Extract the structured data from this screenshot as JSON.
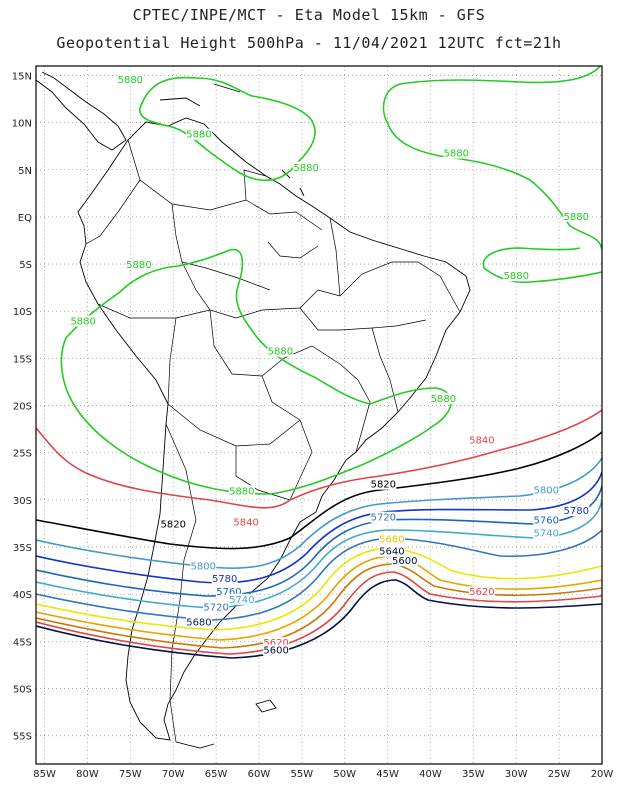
{
  "title": {
    "line1": "CPTEC/INPE/MCT  -   Eta Model 15km  -  GFS",
    "line2": "Geopotential Height 500hPa  -  11/04/2021 12UTC fct=21h"
  },
  "map": {
    "lon_range": [
      -86,
      -20
    ],
    "lat_range": [
      -58,
      16
    ],
    "lat_ticks": [
      {
        "v": 15,
        "label": "15N"
      },
      {
        "v": 10,
        "label": "10N"
      },
      {
        "v": 5,
        "label": "5N"
      },
      {
        "v": 0,
        "label": "EQ"
      },
      {
        "v": -5,
        "label": "5S"
      },
      {
        "v": -10,
        "label": "10S"
      },
      {
        "v": -15,
        "label": "15S"
      },
      {
        "v": -20,
        "label": "20S"
      },
      {
        "v": -25,
        "label": "25S"
      },
      {
        "v": -30,
        "label": "30S"
      },
      {
        "v": -35,
        "label": "35S"
      },
      {
        "v": -40,
        "label": "40S"
      },
      {
        "v": -45,
        "label": "45S"
      },
      {
        "v": -50,
        "label": "50S"
      },
      {
        "v": -55,
        "label": "55S"
      }
    ],
    "lon_ticks": [
      {
        "v": -85,
        "label": "85W"
      },
      {
        "v": -80,
        "label": "80W"
      },
      {
        "v": -75,
        "label": "75W"
      },
      {
        "v": -70,
        "label": "70W"
      },
      {
        "v": -65,
        "label": "65W"
      },
      {
        "v": -60,
        "label": "60W"
      },
      {
        "v": -55,
        "label": "55W"
      },
      {
        "v": -50,
        "label": "50W"
      },
      {
        "v": -45,
        "label": "45W"
      },
      {
        "v": -40,
        "label": "40W"
      },
      {
        "v": -35,
        "label": "35W"
      },
      {
        "v": -30,
        "label": "30W"
      },
      {
        "v": -25,
        "label": "25W"
      },
      {
        "v": -20,
        "label": "20W"
      }
    ],
    "grid": "dotted"
  },
  "contour_labels": [
    {
      "text": "5880",
      "color": "#22cc22",
      "lon": -75,
      "lat": 14.3
    },
    {
      "text": "5880",
      "color": "#22cc22",
      "lon": -67,
      "lat": 8.5
    },
    {
      "text": "5880",
      "color": "#22cc22",
      "lon": -54.5,
      "lat": 5
    },
    {
      "text": "5880",
      "color": "#22cc22",
      "lon": -37,
      "lat": 6.5
    },
    {
      "text": "5880",
      "color": "#22cc22",
      "lon": -23,
      "lat": -0.2
    },
    {
      "text": "5880",
      "color": "#22cc22",
      "lon": -30,
      "lat": -6.5
    },
    {
      "text": "5880",
      "color": "#22cc22",
      "lon": -74,
      "lat": -5.3
    },
    {
      "text": "5880",
      "color": "#22cc22",
      "lon": -80.5,
      "lat": -11.3
    },
    {
      "text": "5880",
      "color": "#22cc22",
      "lon": -57.5,
      "lat": -14.5
    },
    {
      "text": "5880",
      "color": "#22cc22",
      "lon": -38.5,
      "lat": -19.5
    },
    {
      "text": "5880",
      "color": "#22cc22",
      "lon": -62,
      "lat": -29.3
    },
    {
      "text": "5840",
      "color": "#e04444",
      "lon": -34,
      "lat": -23.9
    },
    {
      "text": "5840",
      "color": "#e04444",
      "lon": -61.5,
      "lat": -32.6
    },
    {
      "text": "5820",
      "color": "#000000",
      "lon": -45.5,
      "lat": -28.6
    },
    {
      "text": "5820",
      "color": "#000000",
      "lon": -70,
      "lat": -32.8
    },
    {
      "text": "5800",
      "color": "#4499cc",
      "lon": -26.5,
      "lat": -29.2
    },
    {
      "text": "5780",
      "color": "#1133cc",
      "lon": -23,
      "lat": -31.4
    },
    {
      "text": "5760",
      "color": "#1a66bb",
      "lon": -26.5,
      "lat": -32.4
    },
    {
      "text": "5740",
      "color": "#44aacc",
      "lon": -26.5,
      "lat": -33.8
    },
    {
      "text": "5720",
      "color": "#3377bb",
      "lon": -45.5,
      "lat": -32.1
    },
    {
      "text": "5800",
      "color": "#4499cc",
      "lon": -66.5,
      "lat": -37.3
    },
    {
      "text": "5780",
      "color": "#1133cc",
      "lon": -64,
      "lat": -38.6
    },
    {
      "text": "5760",
      "color": "#1a66bb",
      "lon": -63.5,
      "lat": -40
    },
    {
      "text": "5740",
      "color": "#44aacc",
      "lon": -62,
      "lat": -40.8
    },
    {
      "text": "5720",
      "color": "#3377bb",
      "lon": -65,
      "lat": -41.6
    },
    {
      "text": "5680",
      "color": "#112266",
      "lon": -67,
      "lat": -43.2
    },
    {
      "text": "5680",
      "color": "#e8c400",
      "lon": -44.5,
      "lat": -34.4
    },
    {
      "text": "5640",
      "color": "#001144",
      "lon": -44.5,
      "lat": -35.7
    },
    {
      "text": "5600",
      "color": "#001144",
      "lon": -43,
      "lat": -36.7
    },
    {
      "text": "5620",
      "color": "#e04444",
      "lon": -34,
      "lat": -40
    },
    {
      "text": "5620",
      "color": "#e04444",
      "lon": -58,
      "lat": -45.4
    },
    {
      "text": "5600",
      "color": "#001144",
      "lon": -58,
      "lat": -46.2
    }
  ]
}
